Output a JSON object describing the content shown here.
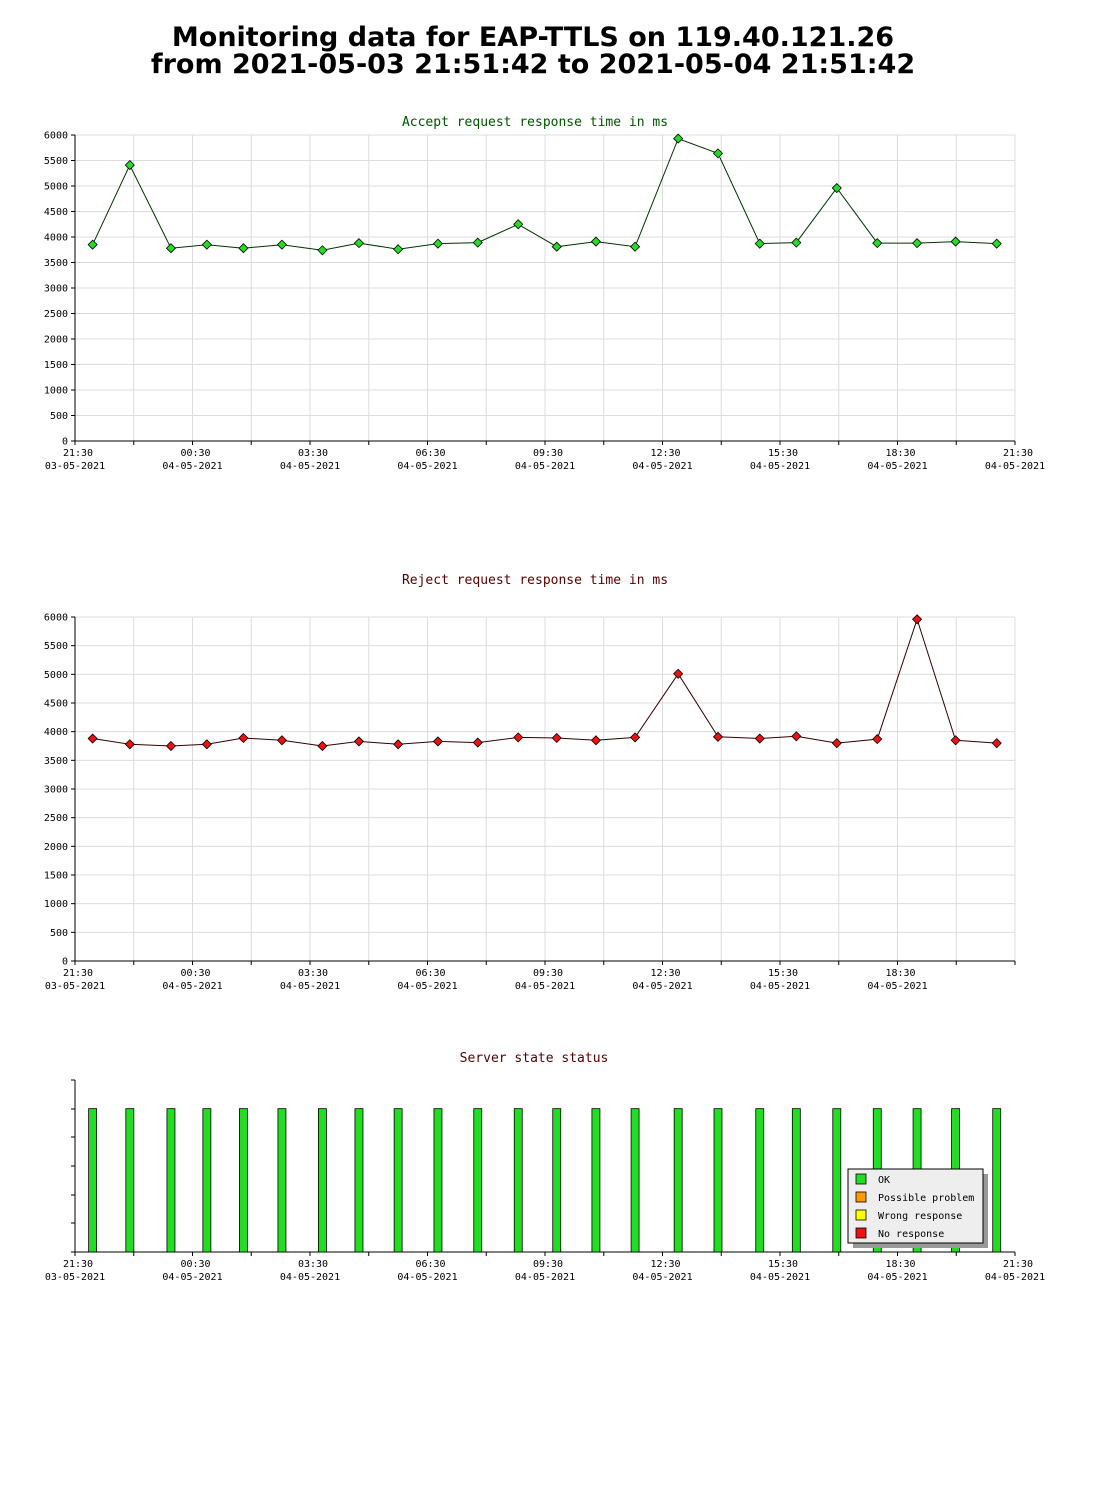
{
  "page": {
    "title_line1": "Monitoring data for EAP-TTLS on 119.40.121.26",
    "title_line2": "from 2021-05-03 21:51:42 to 2021-05-04 21:51:42"
  },
  "chart_data": [
    {
      "type": "line",
      "title": "Accept request response time in ms",
      "title_color": "#005500",
      "line_color": "#003300",
      "marker_color": "#22dd22",
      "ylim": [
        0,
        6000
      ],
      "yticks": [
        "0",
        "500",
        "1000",
        "1500",
        "2000",
        "2500",
        "3000",
        "3500",
        "4000",
        "4500",
        "5000",
        "5500",
        "6000"
      ],
      "grid": true,
      "xticks": [
        {
          "time": "21:30",
          "date": "03-05-2021"
        },
        {
          "time": "00:30",
          "date": "04-05-2021"
        },
        {
          "time": "03:30",
          "date": "04-05-2021"
        },
        {
          "time": "06:30",
          "date": "04-05-2021"
        },
        {
          "time": "09:30",
          "date": "04-05-2021"
        },
        {
          "time": "12:30",
          "date": "04-05-2021"
        },
        {
          "time": "15:30",
          "date": "04-05-2021"
        },
        {
          "time": "18:30",
          "date": "04-05-2021"
        },
        {
          "time": "21:30",
          "date": "04-05-2021"
        }
      ],
      "x": [
        "21:57",
        "22:54",
        "23:57",
        "00:52",
        "01:48",
        "02:47",
        "03:49",
        "04:45",
        "05:45",
        "06:46",
        "07:47",
        "08:49",
        "09:48",
        "10:48",
        "11:48",
        "12:54",
        "13:55",
        "14:59",
        "15:55",
        "16:57",
        "17:59",
        "19:00",
        "19:59",
        "21:02"
      ],
      "values": [
        3850,
        5410,
        3780,
        3850,
        3780,
        3850,
        3740,
        3880,
        3760,
        3870,
        3890,
        4250,
        3810,
        3910,
        3810,
        5930,
        5640,
        3870,
        3890,
        4960,
        3880,
        3880,
        3910,
        3870
      ]
    },
    {
      "type": "line",
      "title": "Reject request response time in ms",
      "title_color": "#550000",
      "line_color": "#330000",
      "marker_color": "#ee1111",
      "ylim": [
        0,
        6000
      ],
      "yticks": [
        "0",
        "500",
        "1000",
        "1500",
        "2000",
        "2500",
        "3000",
        "3500",
        "4000",
        "4500",
        "5000",
        "5500",
        "6000"
      ],
      "grid": true,
      "xticks": [
        {
          "time": "21:30",
          "date": "03-05-2021"
        },
        {
          "time": "00:30",
          "date": "04-05-2021"
        },
        {
          "time": "03:30",
          "date": "04-05-2021"
        },
        {
          "time": "06:30",
          "date": "04-05-2021"
        },
        {
          "time": "09:30",
          "date": "04-05-2021"
        },
        {
          "time": "12:30",
          "date": "04-05-2021"
        },
        {
          "time": "15:30",
          "date": "04-05-2021"
        },
        {
          "time": "18:30",
          "date": "04-05-2021"
        }
      ],
      "x": [
        "21:57",
        "22:54",
        "23:57",
        "00:52",
        "01:48",
        "02:47",
        "03:49",
        "04:45",
        "05:45",
        "06:46",
        "07:47",
        "08:49",
        "09:48",
        "10:48",
        "11:48",
        "12:54",
        "13:55",
        "14:59",
        "15:55",
        "16:57",
        "17:59",
        "19:00",
        "19:59",
        "21:02"
      ],
      "values": [
        3880,
        3780,
        3750,
        3780,
        3890,
        3850,
        3750,
        3830,
        3780,
        3830,
        3810,
        3900,
        3890,
        3850,
        3900,
        5010,
        3910,
        3880,
        3920,
        3800,
        3870,
        5960,
        3850,
        3800
      ]
    },
    {
      "type": "bar",
      "title": "Server state status",
      "title_color": "#550000",
      "x": [
        "21:57",
        "22:54",
        "23:57",
        "00:52",
        "01:48",
        "02:47",
        "03:49",
        "04:45",
        "05:45",
        "06:46",
        "07:47",
        "08:49",
        "09:48",
        "10:48",
        "11:48",
        "12:54",
        "13:55",
        "14:59",
        "15:55",
        "16:57",
        "17:59",
        "19:00",
        "19:59",
        "21:02"
      ],
      "states": [
        "OK",
        "OK",
        "OK",
        "OK",
        "OK",
        "OK",
        "OK",
        "OK",
        "OK",
        "OK",
        "OK",
        "OK",
        "OK",
        "OK",
        "OK",
        "OK",
        "OK",
        "OK",
        "OK",
        "OK",
        "OK",
        "OK",
        "OK",
        "OK"
      ],
      "xticks": [
        {
          "time": "21:30",
          "date": "03-05-2021"
        },
        {
          "time": "00:30",
          "date": "04-05-2021"
        },
        {
          "time": "03:30",
          "date": "04-05-2021"
        },
        {
          "time": "06:30",
          "date": "04-05-2021"
        },
        {
          "time": "09:30",
          "date": "04-05-2021"
        },
        {
          "time": "12:30",
          "date": "04-05-2021"
        },
        {
          "time": "15:30",
          "date": "04-05-2021"
        },
        {
          "time": "18:30",
          "date": "04-05-2021"
        },
        {
          "time": "21:30",
          "date": "04-05-2021"
        }
      ],
      "legend_position": "bottom-right",
      "legend": [
        {
          "label": "OK",
          "color": "#22dd22"
        },
        {
          "label": "Possible problem",
          "color": "#ff9900"
        },
        {
          "label": "Wrong response",
          "color": "#ffff00"
        },
        {
          "label": "No response",
          "color": "#ee1111"
        }
      ]
    }
  ]
}
